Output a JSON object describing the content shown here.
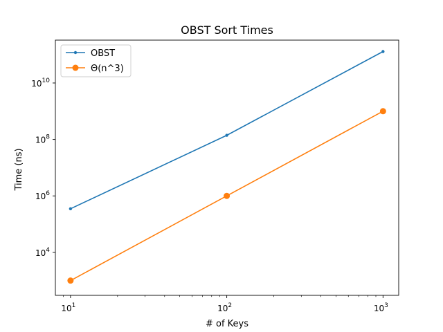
{
  "chart_data": {
    "type": "line",
    "title": "OBST Sort Times",
    "xlabel": "# of Keys",
    "ylabel": "Time (ns)",
    "xscale": "log",
    "yscale": "log",
    "xlim": [
      8,
      1260
    ],
    "ylim": [
      300,
      330000000000
    ],
    "x_ticks": [
      {
        "base": "10",
        "exp": "1",
        "value": 10
      },
      {
        "base": "10",
        "exp": "2",
        "value": 100
      },
      {
        "base": "10",
        "exp": "3",
        "value": 1000
      }
    ],
    "y_ticks": [
      {
        "base": "10",
        "exp": "4",
        "value": 10000
      },
      {
        "base": "10",
        "exp": "6",
        "value": 1000000
      },
      {
        "base": "10",
        "exp": "8",
        "value": 100000000
      },
      {
        "base": "10",
        "exp": "10",
        "value": 10000000000
      }
    ],
    "grid": false,
    "legend_position": "top-left",
    "series": [
      {
        "name": "OBST",
        "color": "#1f77b4",
        "marker": "small-dot",
        "x": [
          10,
          100,
          1000
        ],
        "y": [
          350000,
          140000000,
          130000000000
        ]
      },
      {
        "name": "Θ(n^3)",
        "color": "#ff7f0e",
        "marker": "large-dot",
        "x": [
          10,
          100,
          1000
        ],
        "y": [
          1000,
          1000000,
          1000000000
        ]
      }
    ]
  }
}
